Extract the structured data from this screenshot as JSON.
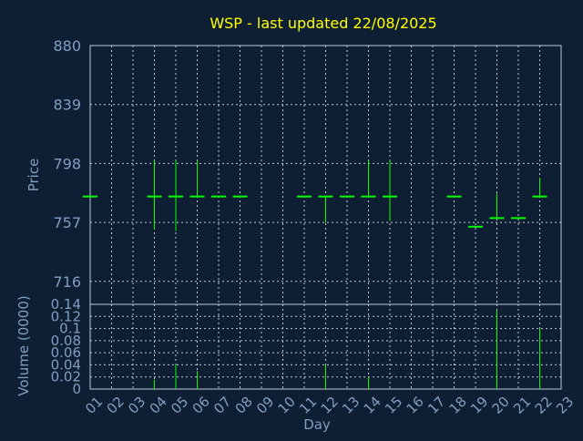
{
  "colors": {
    "background": "#0f1f33",
    "title": "#ffff00",
    "axis_text": "#7f9fc0",
    "grid": "#c0c8d8",
    "candle": "#00ff00"
  },
  "chart_data": [
    {
      "type": "candlestick",
      "title": "WSP - last updated 22/08/2025",
      "ylabel": "Price",
      "ylim": [
        700,
        880
      ],
      "y_ticks": [
        "880",
        "839",
        "798",
        "757",
        "716"
      ],
      "x_categories": [
        "01",
        "02",
        "03",
        "04",
        "05",
        "06",
        "07",
        "08",
        "09",
        "10",
        "11",
        "12",
        "13",
        "14",
        "15",
        "16",
        "17",
        "18",
        "19",
        "20",
        "21",
        "22",
        "23"
      ],
      "grid": true,
      "candles": [
        {
          "day": "01",
          "open": 775,
          "high": 775,
          "low": 775,
          "close": 775
        },
        {
          "day": "04",
          "open": 775,
          "high": 800,
          "low": 752,
          "close": 775
        },
        {
          "day": "05",
          "open": 775,
          "high": 800,
          "low": 751,
          "close": 775
        },
        {
          "day": "06",
          "open": 775,
          "high": 800,
          "low": 775,
          "close": 775
        },
        {
          "day": "07",
          "open": 775,
          "high": 775,
          "low": 775,
          "close": 775
        },
        {
          "day": "08",
          "open": 775,
          "high": 775,
          "low": 775,
          "close": 775
        },
        {
          "day": "11",
          "open": 775,
          "high": 775,
          "low": 775,
          "close": 775
        },
        {
          "day": "12",
          "open": 775,
          "high": 775,
          "low": 757,
          "close": 775
        },
        {
          "day": "13",
          "open": 775,
          "high": 775,
          "low": 775,
          "close": 775
        },
        {
          "day": "14",
          "open": 775,
          "high": 800,
          "low": 775,
          "close": 775
        },
        {
          "day": "15",
          "open": 775,
          "high": 800,
          "low": 758,
          "close": 775
        },
        {
          "day": "18",
          "open": 775,
          "high": 775,
          "low": 775,
          "close": 775
        },
        {
          "day": "19",
          "open": 754,
          "high": 754,
          "low": 754,
          "close": 754
        },
        {
          "day": "20",
          "open": 760,
          "high": 777,
          "low": 760,
          "close": 760
        },
        {
          "day": "21",
          "open": 760,
          "high": 760,
          "low": 760,
          "close": 760
        },
        {
          "day": "22",
          "open": 775,
          "high": 788,
          "low": 775,
          "close": 775
        }
      ]
    },
    {
      "type": "bar",
      "ylabel": "Volume (0000)",
      "xlabel": "Day",
      "ylim": [
        0,
        0.14
      ],
      "y_ticks": [
        "0.14",
        "0.12",
        "0.1",
        "0.08",
        "0.06",
        "0.04",
        "0.02",
        "0"
      ],
      "x_categories": [
        "01",
        "02",
        "03",
        "04",
        "05",
        "06",
        "07",
        "08",
        "09",
        "10",
        "11",
        "12",
        "13",
        "14",
        "15",
        "16",
        "17",
        "18",
        "19",
        "20",
        "21",
        "22",
        "23"
      ],
      "bars": [
        {
          "day": "04",
          "value": 0.015
        },
        {
          "day": "05",
          "value": 0.04
        },
        {
          "day": "06",
          "value": 0.03
        },
        {
          "day": "12",
          "value": 0.04
        },
        {
          "day": "14",
          "value": 0.02
        },
        {
          "day": "20",
          "value": 0.13
        },
        {
          "day": "22",
          "value": 0.1
        }
      ]
    }
  ]
}
